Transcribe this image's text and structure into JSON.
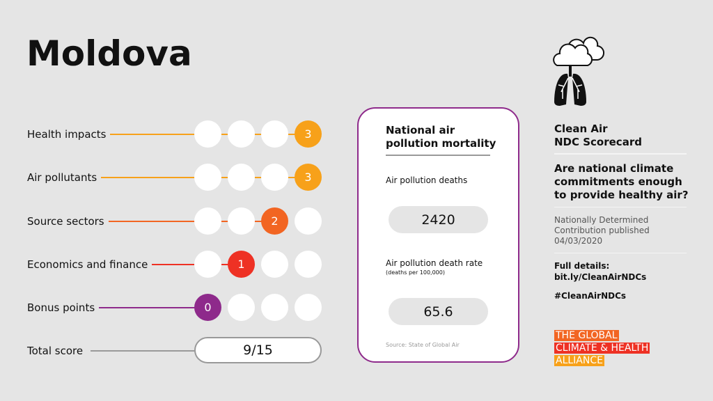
{
  "country": "Moldova",
  "categories": [
    {
      "label": "Health impacts",
      "score": 3,
      "max": 3,
      "color": "#f7a11a"
    },
    {
      "label": "Air pollutants",
      "score": 3,
      "max": 3,
      "color": "#f7a11a"
    },
    {
      "label": "Source sectors",
      "score": 2,
      "max": 3,
      "color": "#f26522"
    },
    {
      "label": "Economics and finance",
      "score": 1,
      "max": 3,
      "color": "#ee3124"
    },
    {
      "label": "Bonus points",
      "score": 0,
      "max": 3,
      "color": "#8e2a8b"
    }
  ],
  "total": {
    "label": "Total score",
    "value": "9/15"
  },
  "mortality": {
    "title": "National air pollution mortality",
    "deaths_label": "Air pollution deaths",
    "deaths_value": "2420",
    "rate_label": "Air pollution death rate",
    "rate_sublabel": "(deaths per 100,000)",
    "rate_value": "65.6",
    "source": "Source: State of Global Air"
  },
  "side": {
    "icon": "cloud-lungs-icon",
    "scorecard_line1": "Clean Air",
    "scorecard_line2": "NDC Scorecard",
    "question": "Are national climate commitments enough to provide healthy air?",
    "ndc_line1": "Nationally Determined",
    "ndc_line2": "Contribution published",
    "ndc_date": "04/03/2020",
    "details_label": "Full details:",
    "details_link": "bit.ly/CleanAirNDCs",
    "hashtag": "#CleanAirNDCs"
  },
  "logo": {
    "line1": "THE GLOBAL",
    "line2": "CLIMATE & HEALTH",
    "line3": "ALLIANCE",
    "colors": [
      "#f26522",
      "#ee3124",
      "#f7a11a"
    ]
  }
}
